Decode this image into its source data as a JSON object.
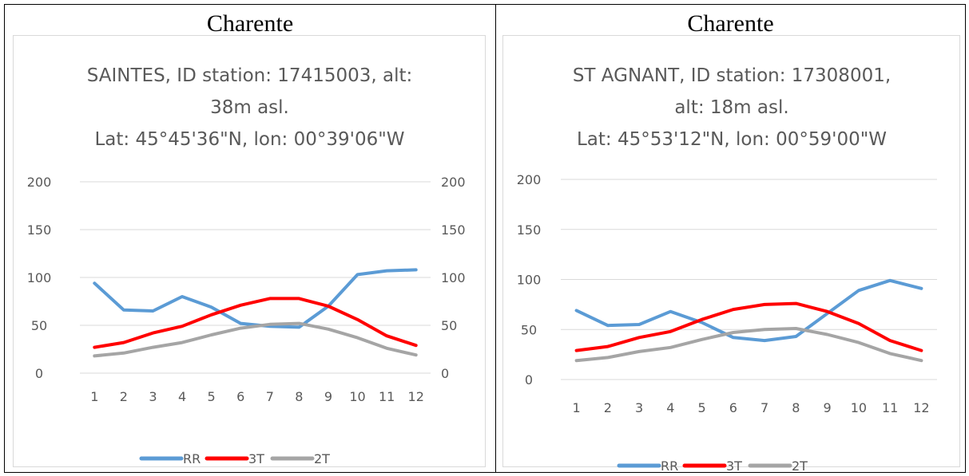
{
  "colors": {
    "RR": "#5b9bd5",
    "3T": "#ff0000",
    "2T": "#a5a5a5",
    "grid": "#d9d9d9",
    "axis_text": "#595959",
    "title_text": "#595959"
  },
  "panels": [
    {
      "header": "Charente",
      "chart_title_lines": [
        "SAINTES, ID station: 17415003, alt:",
        "38m asl.",
        "Lat: 45°45'36\"N, lon: 00°39'06\"W"
      ]
    },
    {
      "header": "Charente",
      "chart_title_lines": [
        "ST AGNANT, ID station: 17308001,",
        "alt: 18m asl.",
        "Lat: 45°53'12\"N, lon: 00°59'00\"W"
      ]
    }
  ],
  "chart_data": [
    {
      "type": "line",
      "title": "SAINTES, ID station: 17415003, alt: 38m asl. Lat: 45°45'36\"N, lon: 00°39'06\"W",
      "x": [
        1,
        2,
        3,
        4,
        5,
        6,
        7,
        8,
        9,
        10,
        11,
        12
      ],
      "ylim": [
        0,
        200
      ],
      "y_ticks": [
        0,
        50,
        100,
        150,
        200
      ],
      "secondary_ylim": [
        0,
        200
      ],
      "secondary_y_ticks": [
        0,
        50,
        100,
        150,
        200
      ],
      "grid": true,
      "legend": "bottom",
      "series": [
        {
          "name": "RR",
          "axis": "primary",
          "values": [
            94,
            66,
            65,
            80,
            69,
            52,
            49,
            48,
            70,
            103,
            107,
            108
          ]
        },
        {
          "name": "3T",
          "axis": "secondary",
          "values": [
            27,
            32,
            42,
            49,
            61,
            71,
            78,
            78,
            70,
            56,
            39,
            29
          ]
        },
        {
          "name": "2T",
          "axis": "secondary",
          "values": [
            18,
            21,
            27,
            32,
            40,
            47,
            51,
            52,
            46,
            37,
            26,
            19
          ]
        }
      ]
    },
    {
      "type": "line",
      "title": "ST AGNANT, ID station: 17308001, alt: 18m asl. Lat: 45°53'12\"N, lon: 00°59'00\"W",
      "x": [
        1,
        2,
        3,
        4,
        5,
        6,
        7,
        8,
        9,
        10,
        11,
        12
      ],
      "ylim": [
        0,
        200
      ],
      "y_ticks": [
        0,
        50,
        100,
        150,
        200
      ],
      "grid": true,
      "legend": "bottom",
      "series": [
        {
          "name": "RR",
          "values": [
            69,
            54,
            55,
            68,
            57,
            42,
            39,
            43,
            66,
            89,
            99,
            91
          ]
        },
        {
          "name": "3T",
          "values": [
            29,
            33,
            42,
            48,
            60,
            70,
            75,
            76,
            68,
            56,
            39,
            29
          ]
        },
        {
          "name": "2T",
          "values": [
            19,
            22,
            28,
            32,
            40,
            47,
            50,
            51,
            45,
            37,
            26,
            19
          ]
        }
      ]
    }
  ]
}
